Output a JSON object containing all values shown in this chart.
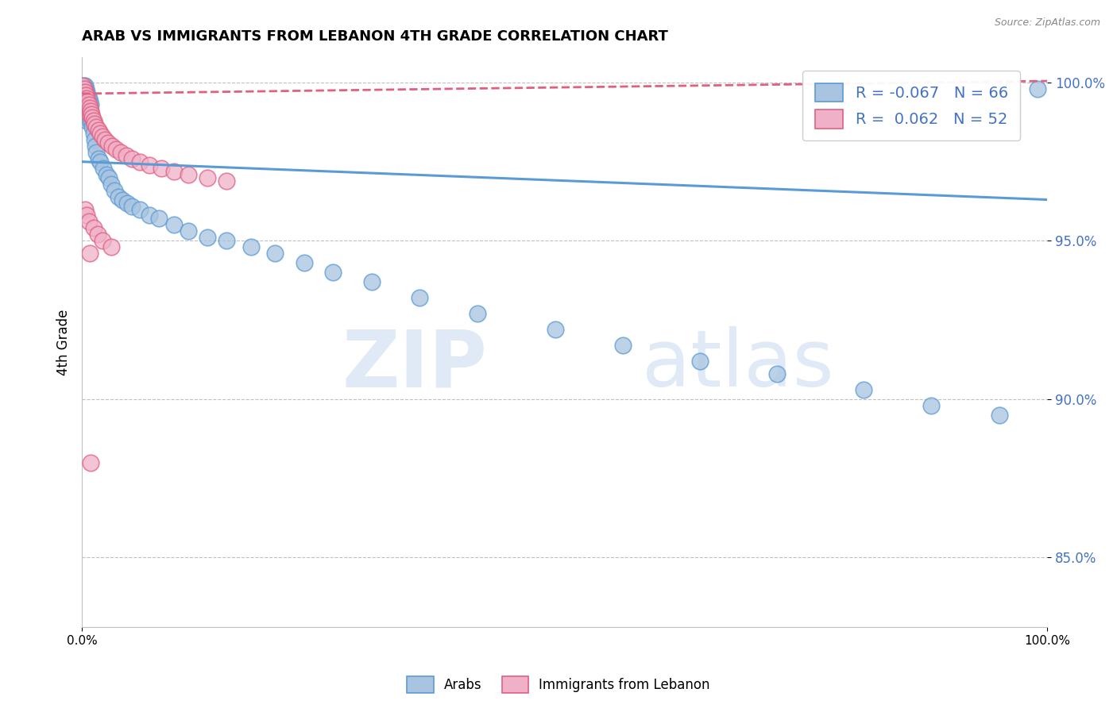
{
  "title": "ARAB VS IMMIGRANTS FROM LEBANON 4TH GRADE CORRELATION CHART",
  "source": "Source: ZipAtlas.com",
  "ylabel": "4th Grade",
  "xlim": [
    0.0,
    1.0
  ],
  "ylim": [
    0.828,
    1.008
  ],
  "yticks": [
    0.85,
    0.9,
    0.95,
    1.0
  ],
  "ytick_labels": [
    "85.0%",
    "90.0%",
    "95.0%",
    "100.0%"
  ],
  "legend_r_arab": "-0.067",
  "legend_n_arab": "66",
  "legend_r_leb": "0.062",
  "legend_n_leb": "52",
  "color_arab_fill": "#a8c4e0",
  "color_arab_edge": "#5b9bd5",
  "color_leb_fill": "#f0b0c8",
  "color_leb_edge": "#e06080",
  "color_arab_line": "#5b9bd5",
  "color_leb_line": "#e06080",
  "arab_line_start_y": 0.975,
  "arab_line_end_y": 0.963,
  "leb_line_start_y": 0.9965,
  "leb_line_end_y": 1.0005,
  "arab_x": [
    0.001,
    0.001,
    0.002,
    0.002,
    0.002,
    0.003,
    0.003,
    0.003,
    0.003,
    0.004,
    0.004,
    0.004,
    0.005,
    0.005,
    0.005,
    0.005,
    0.006,
    0.006,
    0.006,
    0.007,
    0.007,
    0.007,
    0.008,
    0.008,
    0.008,
    0.009,
    0.009,
    0.01,
    0.011,
    0.012,
    0.013,
    0.014,
    0.015,
    0.017,
    0.019,
    0.022,
    0.025,
    0.028,
    0.03,
    0.034,
    0.038,
    0.042,
    0.047,
    0.052,
    0.06,
    0.07,
    0.08,
    0.095,
    0.11,
    0.13,
    0.15,
    0.175,
    0.2,
    0.23,
    0.26,
    0.3,
    0.35,
    0.41,
    0.49,
    0.56,
    0.64,
    0.72,
    0.81,
    0.88,
    0.95,
    0.99
  ],
  "arab_y": [
    0.998,
    0.996,
    0.999,
    0.996,
    0.993,
    0.999,
    0.997,
    0.994,
    0.991,
    0.998,
    0.995,
    0.992,
    0.997,
    0.994,
    0.991,
    0.988,
    0.996,
    0.993,
    0.99,
    0.995,
    0.992,
    0.989,
    0.994,
    0.991,
    0.988,
    0.993,
    0.99,
    0.988,
    0.986,
    0.984,
    0.982,
    0.98,
    0.978,
    0.976,
    0.975,
    0.973,
    0.971,
    0.97,
    0.968,
    0.966,
    0.964,
    0.963,
    0.962,
    0.961,
    0.96,
    0.958,
    0.957,
    0.955,
    0.953,
    0.951,
    0.95,
    0.948,
    0.946,
    0.943,
    0.94,
    0.937,
    0.932,
    0.927,
    0.922,
    0.917,
    0.912,
    0.908,
    0.903,
    0.898,
    0.895,
    0.998
  ],
  "leb_x": [
    0.001,
    0.001,
    0.002,
    0.002,
    0.002,
    0.003,
    0.003,
    0.003,
    0.004,
    0.004,
    0.004,
    0.005,
    0.005,
    0.005,
    0.006,
    0.006,
    0.007,
    0.007,
    0.008,
    0.008,
    0.009,
    0.01,
    0.011,
    0.012,
    0.013,
    0.015,
    0.017,
    0.019,
    0.021,
    0.024,
    0.027,
    0.031,
    0.035,
    0.04,
    0.046,
    0.052,
    0.06,
    0.07,
    0.082,
    0.095,
    0.11,
    0.13,
    0.15,
    0.003,
    0.005,
    0.007,
    0.009,
    0.012,
    0.016,
    0.021,
    0.03,
    0.008
  ],
  "leb_y": [
    0.999,
    0.997,
    0.998,
    0.996,
    0.994,
    0.997,
    0.995,
    0.993,
    0.996,
    0.994,
    0.992,
    0.995,
    0.993,
    0.991,
    0.994,
    0.992,
    0.993,
    0.991,
    0.992,
    0.99,
    0.991,
    0.99,
    0.989,
    0.988,
    0.987,
    0.986,
    0.985,
    0.984,
    0.983,
    0.982,
    0.981,
    0.98,
    0.979,
    0.978,
    0.977,
    0.976,
    0.975,
    0.974,
    0.973,
    0.972,
    0.971,
    0.97,
    0.969,
    0.96,
    0.958,
    0.956,
    0.88,
    0.954,
    0.952,
    0.95,
    0.948,
    0.946
  ]
}
